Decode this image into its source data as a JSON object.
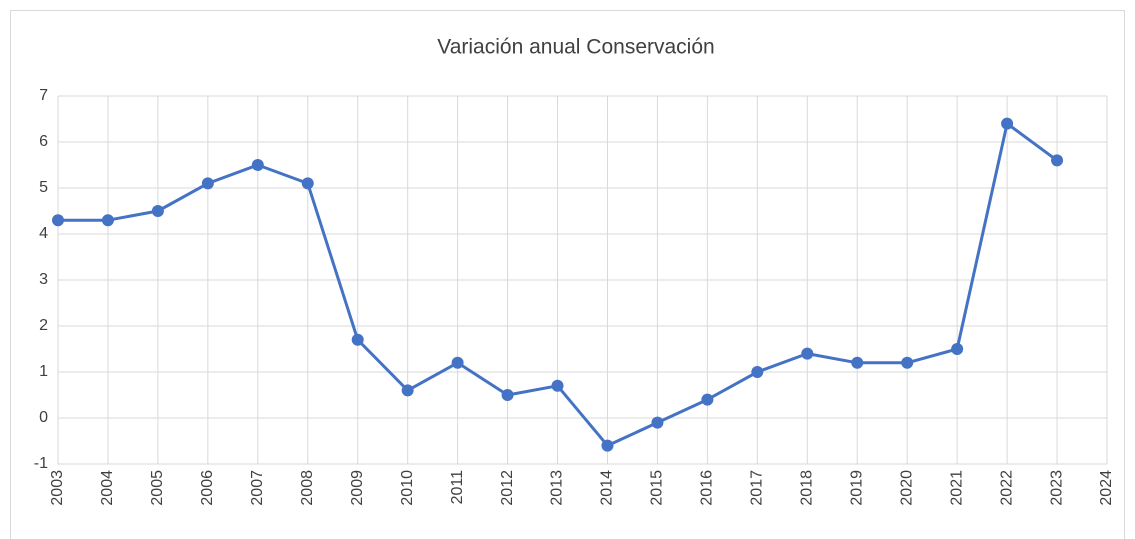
{
  "chart_data": {
    "type": "line",
    "title": "Variación anual Conservación",
    "x": [
      2003,
      2004,
      2005,
      2006,
      2007,
      2008,
      2009,
      2010,
      2011,
      2012,
      2013,
      2014,
      2015,
      2016,
      2017,
      2018,
      2019,
      2020,
      2021,
      2022,
      2023
    ],
    "series": [
      {
        "name": "Conservación",
        "color": "#4472c4",
        "values": [
          4.3,
          4.3,
          4.5,
          5.1,
          5.5,
          5.1,
          1.7,
          0.6,
          1.2,
          0.5,
          0.7,
          -0.6,
          -0.1,
          0.4,
          1.0,
          1.4,
          1.2,
          1.2,
          1.5,
          6.4,
          5.6
        ]
      }
    ],
    "xlim": [
      2003,
      2024
    ],
    "xticks": [
      2003,
      2004,
      2005,
      2006,
      2007,
      2008,
      2009,
      2010,
      2011,
      2012,
      2013,
      2014,
      2015,
      2016,
      2017,
      2018,
      2019,
      2020,
      2021,
      2022,
      2023,
      2024
    ],
    "ylim": [
      -1,
      7
    ],
    "yticks": [
      -1,
      0,
      1,
      2,
      3,
      4,
      5,
      6,
      7
    ],
    "grid": true
  }
}
